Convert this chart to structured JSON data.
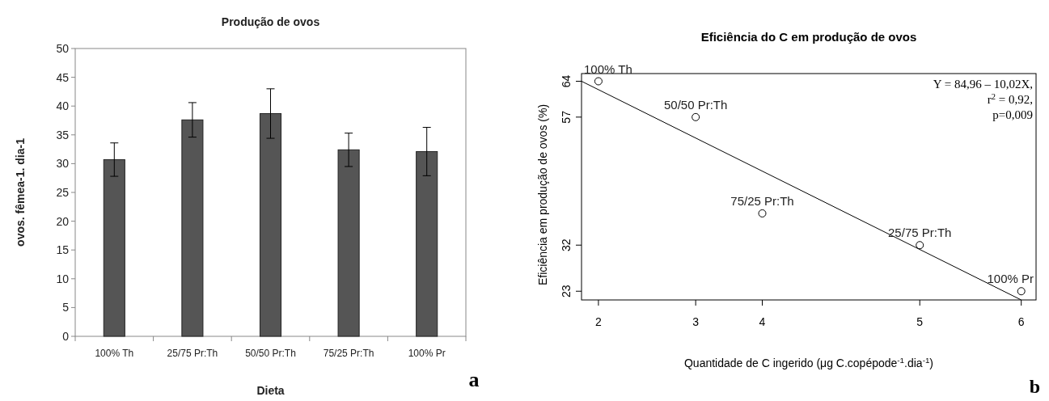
{
  "chart_data": [
    {
      "type": "bar",
      "title": "Produção de ovos",
      "xlabel": "Dieta",
      "ylabel": "ovos. fêmea-1. dia-1",
      "categories": [
        "100% Th",
        "25/75 Pr:Th",
        "50/50 Pr:Th",
        "75/25 Pr:Th",
        "100% Pr"
      ],
      "values": [
        30.7,
        37.6,
        38.7,
        32.4,
        32.1
      ],
      "errors": [
        2.9,
        3.0,
        4.3,
        2.9,
        4.2
      ],
      "color": "#555555",
      "ylim": [
        0,
        50
      ],
      "yticks": [
        0,
        5,
        10,
        15,
        20,
        25,
        30,
        35,
        40,
        45,
        50
      ],
      "annotations": [
        "a"
      ]
    },
    {
      "type": "scatter",
      "title": "Eficiência do C em produção de ovos",
      "xlabel": "Quantidade de C ingerido (μg C.copépode$^{-1}$.dia$^{-1}$)",
      "ylabel": "Eficiência em produção de ovos (%)",
      "xlim": [
        1.84,
        6.14
      ],
      "ylim": [
        21.3,
        65.5
      ],
      "xticks": [
        2,
        {
          "value": 2.92,
          "label": "3"
        },
        {
          "value": 3.55,
          "label": "4"
        },
        {
          "value": 5.04,
          "label": "5"
        },
        6
      ],
      "yticks": [
        23,
        32,
        57,
        64
      ],
      "series": [
        {
          "type": "scatter",
          "color": "#000000",
          "marker": "circle",
          "x": [
            2,
            2.92,
            3.55,
            5.04,
            6
          ],
          "values": [
            64,
            57,
            38.2,
            32,
            23
          ]
        },
        {
          "type": "line",
          "color": "#000000",
          "marker": "none",
          "x": [
            1.84,
            6.0
          ],
          "values": [
            64.0,
            21.3
          ]
        }
      ],
      "annotations": [
        {
          "text": "100% Th",
          "x": 2,
          "y": 64
        },
        {
          "text": "50/50 Pr:Th",
          "x": 2.92,
          "y": 57
        },
        {
          "text": "75/25 Pr:Th",
          "x": 3.55,
          "y": 38.2
        },
        {
          "text": "25/75 Pr:Th",
          "x": 5.04,
          "y": 32
        },
        {
          "text": "100% Pr",
          "x": 6,
          "y": 23
        },
        "Y = 84,96 – 10,02X,",
        "r$^{2}$ = 0,92,",
        "p=0,009",
        "b"
      ]
    }
  ]
}
